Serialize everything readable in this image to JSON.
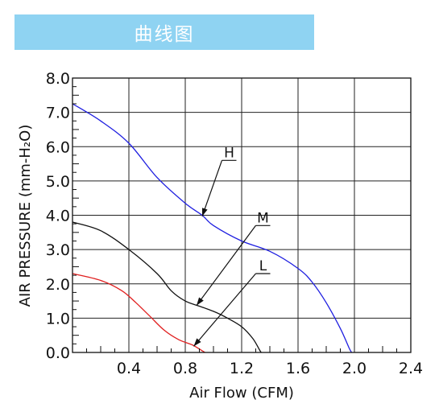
{
  "banner": {
    "title": "曲线图"
  },
  "chart_data": {
    "type": "line",
    "xlabel": "Air Flow (CFM)",
    "ylabel": "AIR PRESSURE (mm-H₂O)",
    "xlim": [
      0,
      2.4
    ],
    "ylim": [
      0,
      8.0
    ],
    "xticks": [
      "0.4",
      "0.8",
      "1.2",
      "1.6",
      "2.0",
      "2.4"
    ],
    "yticks": [
      "0.0",
      "1.0",
      "2.0",
      "3.0",
      "4.0",
      "5.0",
      "6.0",
      "7.0",
      "8.0"
    ],
    "grid": true,
    "series": [
      {
        "name": "H",
        "color": "#1f1fe0",
        "points": [
          [
            0,
            7.25
          ],
          [
            0.2,
            6.75
          ],
          [
            0.4,
            6.1
          ],
          [
            0.6,
            5.1
          ],
          [
            0.8,
            4.35
          ],
          [
            0.92,
            4.0
          ],
          [
            1.0,
            3.7
          ],
          [
            1.2,
            3.25
          ],
          [
            1.4,
            2.95
          ],
          [
            1.6,
            2.45
          ],
          [
            1.7,
            2.05
          ],
          [
            1.8,
            1.45
          ],
          [
            1.9,
            0.7
          ],
          [
            1.96,
            0.15
          ],
          [
            1.98,
            0.0
          ]
        ],
        "label_at": [
          1.06,
          5.6
        ],
        "arrow_to": [
          0.92,
          3.97
        ]
      },
      {
        "name": "M",
        "color": "#111111",
        "points": [
          [
            0,
            3.8
          ],
          [
            0.2,
            3.55
          ],
          [
            0.4,
            3.0
          ],
          [
            0.6,
            2.3
          ],
          [
            0.7,
            1.8
          ],
          [
            0.8,
            1.5
          ],
          [
            0.9,
            1.35
          ],
          [
            1.0,
            1.2
          ],
          [
            1.1,
            1.0
          ],
          [
            1.2,
            0.75
          ],
          [
            1.28,
            0.4
          ],
          [
            1.33,
            0.05
          ],
          [
            1.34,
            0.0
          ]
        ],
        "label_at": [
          1.3,
          3.7
        ],
        "arrow_to": [
          0.88,
          1.37
        ]
      },
      {
        "name": "L",
        "color": "#e01f1f",
        "points": [
          [
            0,
            2.3
          ],
          [
            0.2,
            2.1
          ],
          [
            0.35,
            1.8
          ],
          [
            0.45,
            1.45
          ],
          [
            0.55,
            1.05
          ],
          [
            0.65,
            0.65
          ],
          [
            0.75,
            0.38
          ],
          [
            0.85,
            0.22
          ],
          [
            0.9,
            0.1
          ],
          [
            0.94,
            0.0
          ]
        ],
        "label_at": [
          1.3,
          2.3
        ],
        "arrow_to": [
          0.86,
          0.18
        ]
      }
    ]
  }
}
